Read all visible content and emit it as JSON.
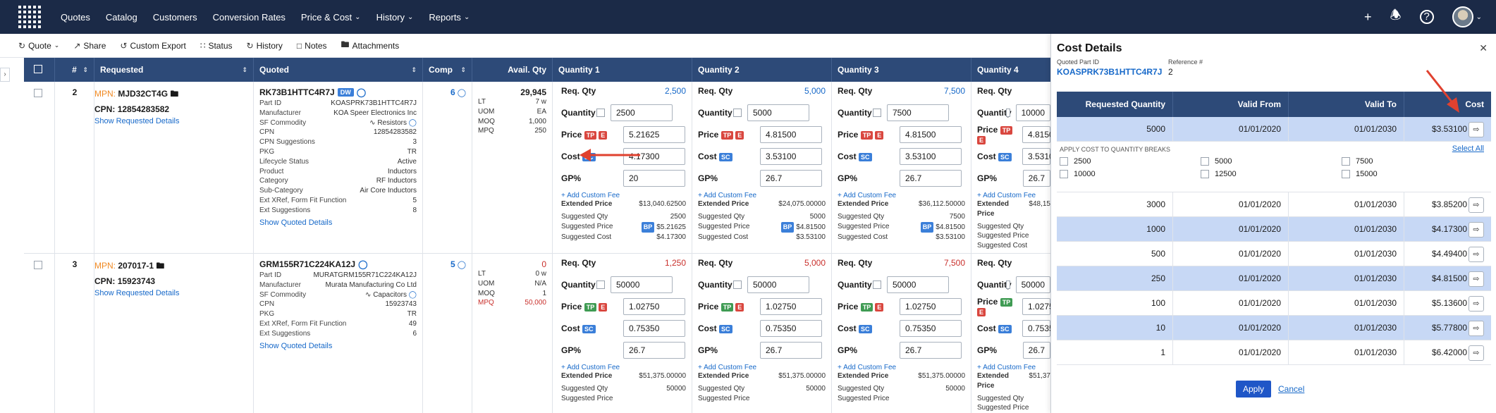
{
  "nav": {
    "items": [
      "Quotes",
      "Catalog",
      "Customers",
      "Conversion Rates",
      "Price & Cost",
      "History",
      "Reports"
    ],
    "dropdown_items": [
      "Price & Cost",
      "History",
      "Reports"
    ]
  },
  "toolbar": {
    "quote": "Quote",
    "share": "Share",
    "custom_export": "Custom Export",
    "status": "Status",
    "history": "History",
    "notes": "Notes",
    "attachments": "Attachments"
  },
  "table": {
    "headers": {
      "num": "#",
      "requested": "Requested",
      "quoted": "Quoted",
      "comp": "Comp",
      "avail": "Avail. Qty",
      "q1": "Quantity 1",
      "q2": "Quantity 2",
      "q3": "Quantity 3",
      "q4": "Quantity 4"
    },
    "labels": {
      "req_qty": "Req. Qty",
      "quantity": "Quantity",
      "price": "Price",
      "cost": "Cost",
      "gp": "GP%",
      "add_fee": "+ Add Custom Fee",
      "ext_price": "Extended Price",
      "sug_qty": "Suggested Qty",
      "sug_price": "Suggested Price",
      "sug_cost": "Suggested Cost",
      "mpn": "MPN:",
      "cpn": "CPN:",
      "show_req": "Show Requested Details",
      "show_quoted": "Show Quoted Details",
      "tp": "TP",
      "e": "E",
      "sc": "SC",
      "bp": "BP",
      "dw": "DW"
    },
    "rows": [
      {
        "num": "2",
        "mpn": "MJD32CT4G",
        "cpn": "12854283582",
        "quoted_part": "RK73B1HTTC4R7J",
        "details": [
          [
            "Part ID",
            "KOASPRK73B1HTTC4R7J"
          ],
          [
            "Manufacturer",
            "KOA Speer Electronics Inc"
          ],
          [
            "SF Commodity",
            "Resistors"
          ],
          [
            "CPN",
            "12854283582"
          ],
          [
            "CPN Suggestions",
            "3"
          ],
          [
            "PKG",
            "TR"
          ],
          [
            "Lifecycle Status",
            "Active"
          ],
          [
            "Product",
            "Inductors"
          ],
          [
            "Category",
            "RF Inductors"
          ],
          [
            "Sub-Category",
            "Air Core Inductors"
          ],
          [
            "Ext XRef, Form Fit Function",
            "5"
          ],
          [
            "Ext Suggestions",
            "8"
          ]
        ],
        "comp": "6",
        "avail_total": "29,945",
        "avail": [
          [
            "LT",
            "7 w"
          ],
          [
            "UOM",
            "EA"
          ],
          [
            "MOQ",
            "1,000"
          ],
          [
            "MPQ",
            "250"
          ]
        ],
        "quantities": [
          {
            "req": "2,500",
            "qty": "2500",
            "price": "5.21625",
            "cost": "4.17300",
            "gp": "20",
            "ext": "$13,040.62500",
            "sqty": "2500",
            "sprice": "$5.21625",
            "scost": "$4.17300"
          },
          {
            "req": "5,000",
            "qty": "5000",
            "price": "4.81500",
            "cost": "3.53100",
            "gp": "26.7",
            "ext": "$24,075.00000",
            "sqty": "5000",
            "sprice": "$4.81500",
            "scost": "$3.53100"
          },
          {
            "req": "7,500",
            "qty": "7500",
            "price": "4.81500",
            "cost": "3.53100",
            "gp": "26.7",
            "ext": "$36,112.50000",
            "sqty": "7500",
            "sprice": "$4.81500",
            "scost": "$3.53100"
          },
          {
            "req": "",
            "qty": "10000",
            "price": "4.8150",
            "cost": "3.5310",
            "gp": "26.7",
            "ext": "$48,15",
            "sqty": "",
            "sprice": "",
            "scost": ""
          }
        ]
      },
      {
        "num": "3",
        "mpn": "207017-1",
        "cpn": "15923743",
        "quoted_part": "GRM155R71C224KA12J",
        "details": [
          [
            "Part ID",
            "MURATGRM155R71C224KA12J"
          ],
          [
            "Manufacturer",
            "Murata Manufacturing Co Ltd"
          ],
          [
            "SF Commodity",
            "Capacitors"
          ],
          [
            "CPN",
            "15923743"
          ],
          [
            "PKG",
            "TR"
          ],
          [
            "Ext XRef, Form Fit Function",
            "49"
          ],
          [
            "Ext Suggestions",
            "6"
          ]
        ],
        "comp": "5",
        "avail_total": "0",
        "avail": [
          [
            "LT",
            "0 w"
          ],
          [
            "UOM",
            "N/A"
          ],
          [
            "MOQ",
            "1"
          ],
          [
            "MPQ",
            "50,000"
          ]
        ],
        "quantities": [
          {
            "req": "1,250",
            "qty": "50000",
            "price": "1.02750",
            "cost": "0.75350",
            "gp": "26.7",
            "ext": "$51,375.00000",
            "sqty": "50000"
          },
          {
            "req": "5,000",
            "qty": "50000",
            "price": "1.02750",
            "cost": "0.75350",
            "gp": "26.7",
            "ext": "$51,375.00000",
            "sqty": "50000"
          },
          {
            "req": "7,500",
            "qty": "50000",
            "price": "1.02750",
            "cost": "0.75350",
            "gp": "26.7",
            "ext": "$51,375.00000",
            "sqty": "50000"
          },
          {
            "req": "",
            "qty": "50000",
            "price": "1.02750",
            "cost": "0.7535",
            "gp": "26.7",
            "ext": "$51,37",
            "sqty": ""
          }
        ]
      }
    ]
  },
  "panel": {
    "title": "Cost Details",
    "quoted_part_label": "Quoted Part ID",
    "quoted_part": "KOASPRK73B1HTTC4R7J",
    "reference_label": "Reference #",
    "reference": "2",
    "headers": [
      "Requested Quantity",
      "Valid From",
      "Valid To",
      "Cost"
    ],
    "selected_row": {
      "qty": "5000",
      "from": "01/01/2020",
      "to": "01/01/2030",
      "cost": "$3.53100"
    },
    "apply_breaks_label": "APPLY COST TO QUANTITY BREAKS",
    "select_all": "Select All",
    "breaks": [
      "2500",
      "5000",
      "7500",
      "10000",
      "12500",
      "15000"
    ],
    "rows": [
      {
        "qty": "3000",
        "from": "01/01/2020",
        "to": "01/01/2030",
        "cost": "$3.85200",
        "selected": false
      },
      {
        "qty": "1000",
        "from": "01/01/2020",
        "to": "01/01/2030",
        "cost": "$4.17300",
        "selected": true
      },
      {
        "qty": "500",
        "from": "01/01/2020",
        "to": "01/01/2030",
        "cost": "$4.49400",
        "selected": false
      },
      {
        "qty": "250",
        "from": "01/01/2020",
        "to": "01/01/2030",
        "cost": "$4.81500",
        "selected": true
      },
      {
        "qty": "100",
        "from": "01/01/2020",
        "to": "01/01/2030",
        "cost": "$5.13600",
        "selected": false
      },
      {
        "qty": "10",
        "from": "01/01/2020",
        "to": "01/01/2030",
        "cost": "$5.77800",
        "selected": true
      },
      {
        "qty": "1",
        "from": "01/01/2020",
        "to": "01/01/2030",
        "cost": "$6.42000",
        "selected": false
      }
    ],
    "apply": "Apply",
    "cancel": "Cancel"
  },
  "colors": {
    "nav_bg": "#1b2a47",
    "header_bg": "#2d4a78",
    "link": "#1769c9",
    "selected_row": "#c7d8f5",
    "annotation_arrow": "#e0412f"
  }
}
